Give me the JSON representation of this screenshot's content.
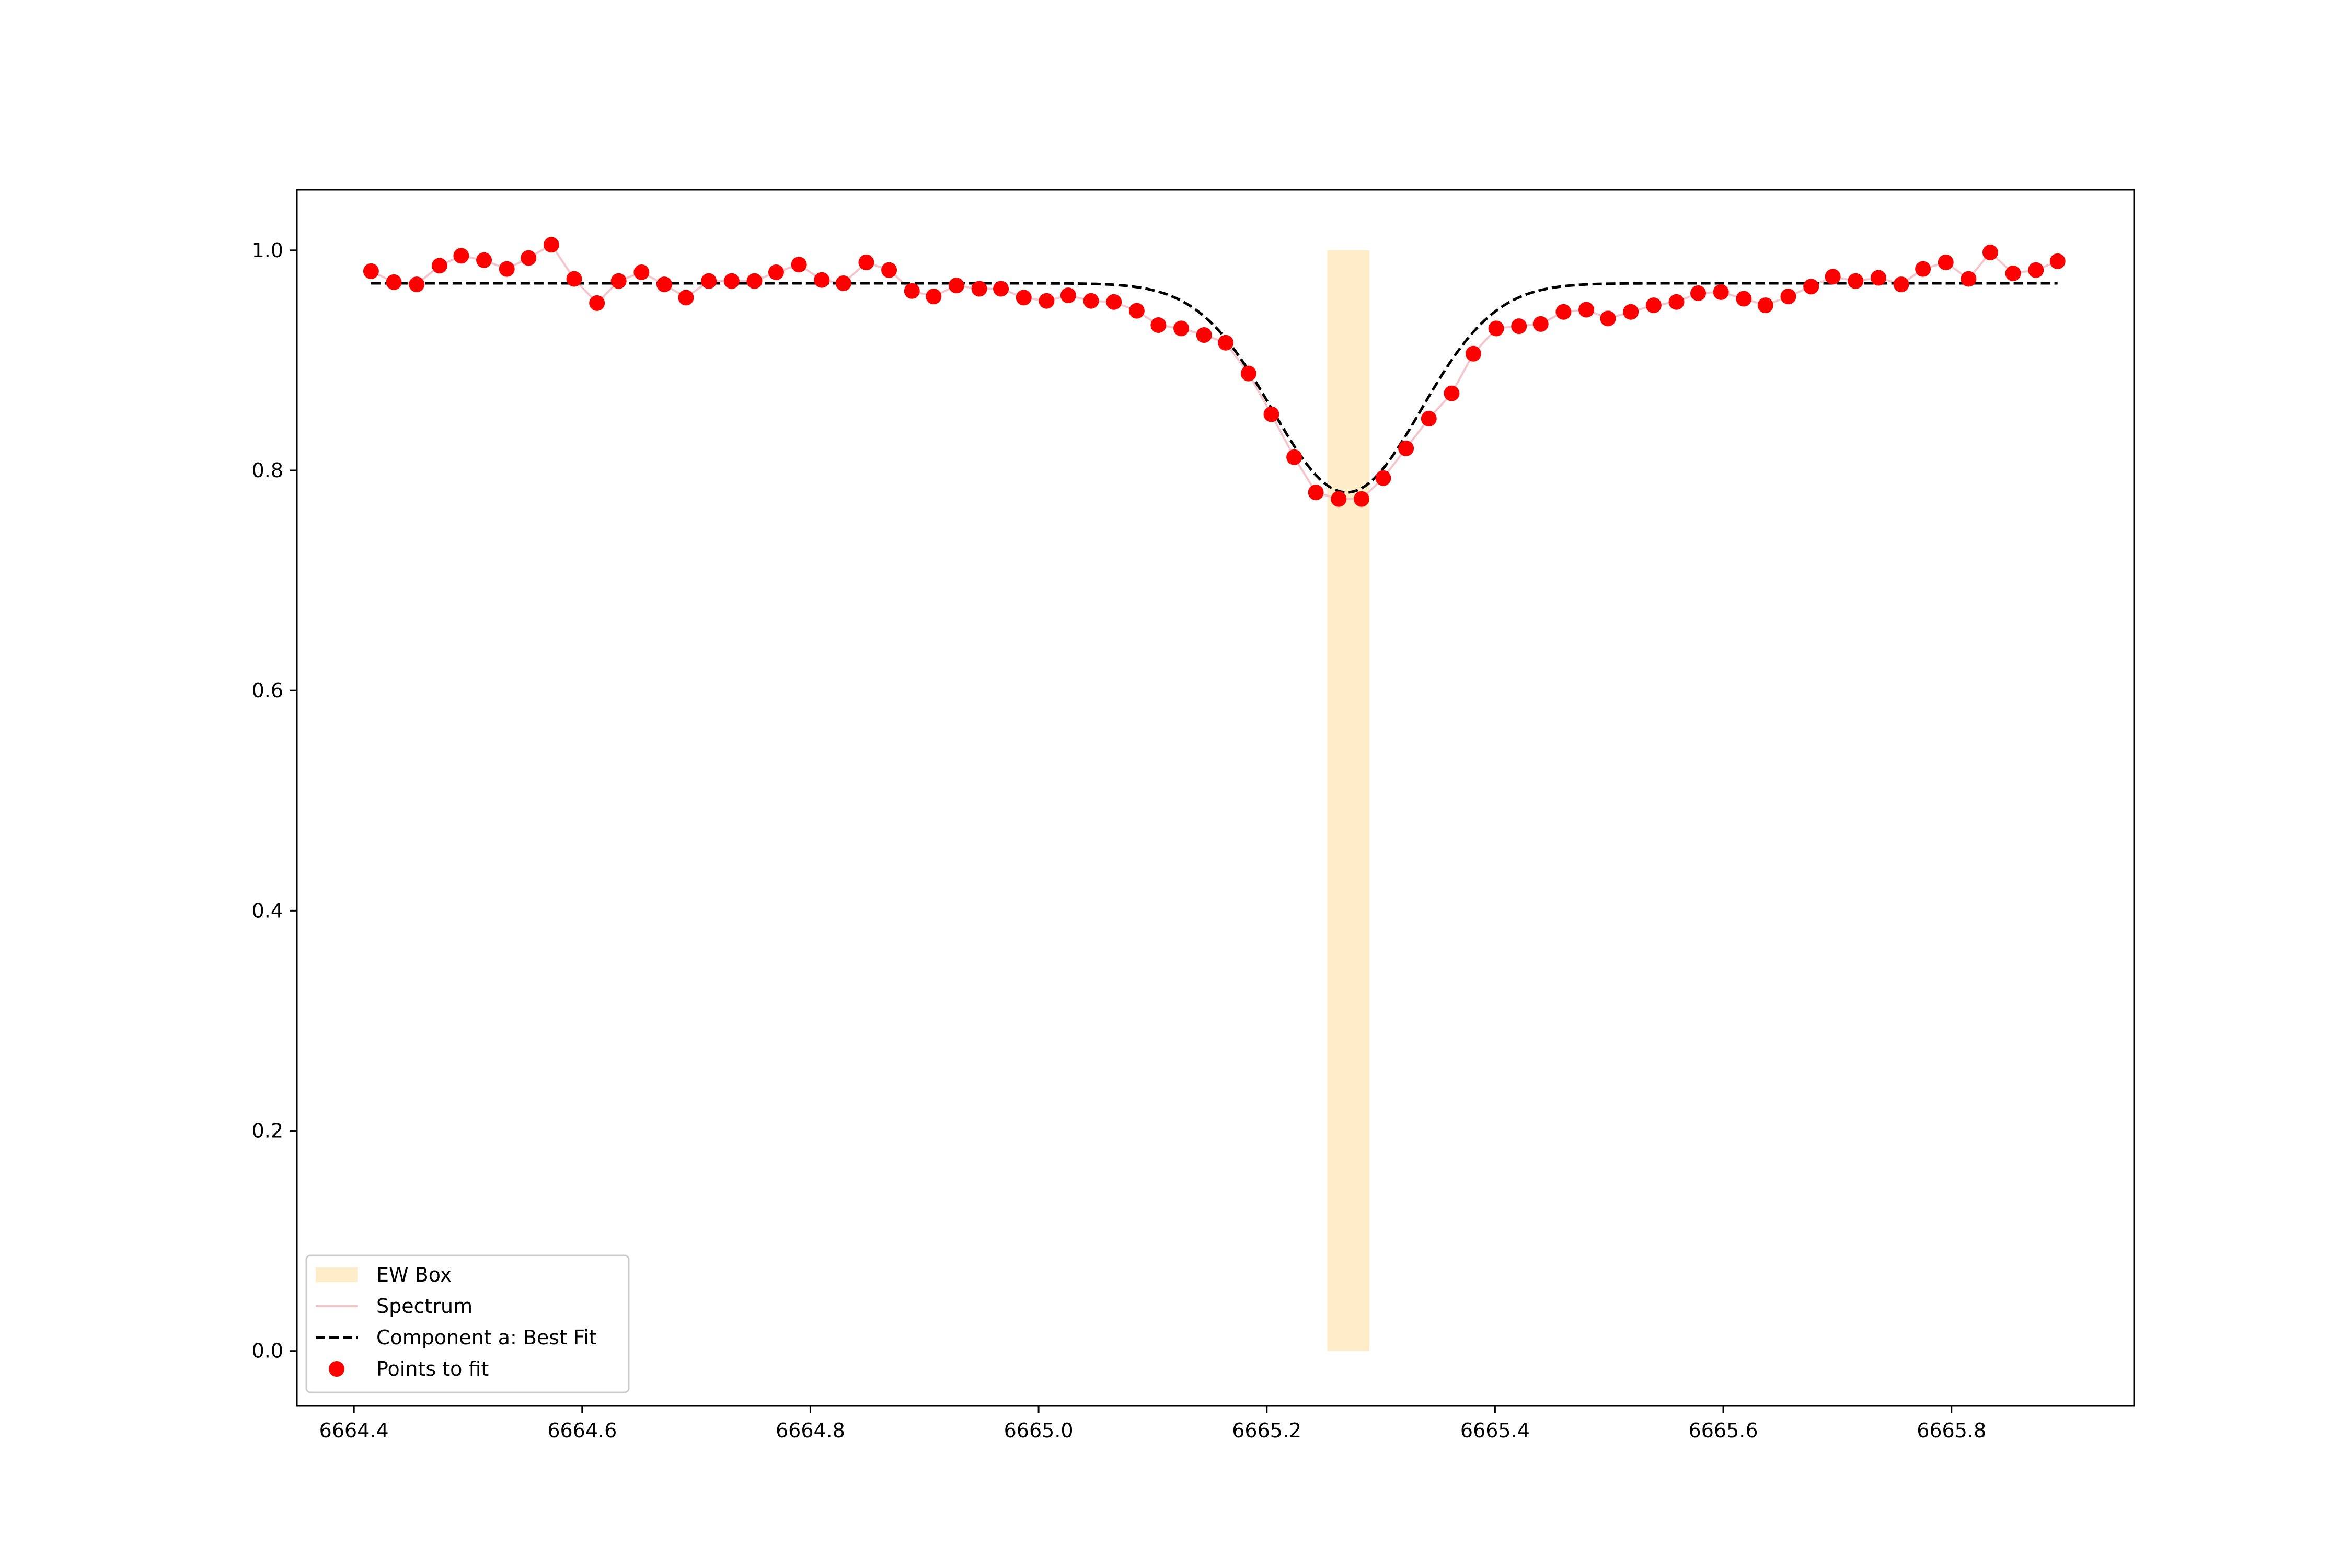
{
  "chart_data": {
    "type": "scatter",
    "title": "",
    "xlabel": "",
    "ylabel": "",
    "xlim": [
      6664.35,
      6665.96
    ],
    "ylim": [
      -0.05,
      1.055
    ],
    "x_ticks": [
      6664.4,
      6664.6,
      6664.8,
      6665.0,
      6665.2,
      6665.4,
      6665.6,
      6665.8
    ],
    "x_tick_labels": [
      "6664.4",
      "6664.6",
      "6664.8",
      "6665.0",
      "6665.2",
      "6665.4",
      "6665.6",
      "6665.8"
    ],
    "y_ticks": [
      0.0,
      0.2,
      0.4,
      0.6,
      0.8,
      1.0
    ],
    "y_tick_labels": [
      "0.0",
      "0.2",
      "0.4",
      "0.6",
      "0.8",
      "1.0"
    ],
    "grid": false,
    "legend_position": "lower-left",
    "legend": [
      {
        "label": "EW Box",
        "kind": "patch",
        "color": "#ffecc8"
      },
      {
        "label": "Spectrum",
        "kind": "line",
        "color": "#f4c6cc"
      },
      {
        "label": "Component a: Best Fit",
        "kind": "dashed-line",
        "color": "#000000"
      },
      {
        "label": "Points to fit",
        "kind": "marker",
        "color": "#ff0000"
      }
    ],
    "ew_box": {
      "label": "EW Box",
      "x_range": [
        6665.253,
        6665.29
      ],
      "y_range": [
        0.0,
        1.0
      ],
      "color": "#ffecc8"
    },
    "spectrum": {
      "label": "Points to fit",
      "line_label": "Spectrum",
      "marker_color": "#ff0000",
      "line_color": "#f4c6cc",
      "x": [
        6664.415,
        6664.435,
        6664.455,
        6664.475,
        6664.494,
        6664.514,
        6664.534,
        6664.553,
        6664.573,
        6664.593,
        6664.613,
        6664.632,
        6664.652,
        6664.672,
        6664.691,
        6664.711,
        6664.731,
        6664.751,
        6664.77,
        6664.79,
        6664.81,
        6664.829,
        6664.849,
        6664.869,
        6664.889,
        6664.908,
        6664.928,
        6664.948,
        6664.967,
        6664.987,
        6665.007,
        6665.026,
        6665.046,
        6665.066,
        6665.086,
        6665.105,
        6665.125,
        6665.145,
        6665.164,
        6665.184,
        6665.204,
        6665.224,
        6665.243,
        6665.263,
        6665.283,
        6665.302,
        6665.322,
        6665.342,
        6665.362,
        6665.381,
        6665.401,
        6665.421,
        6665.44,
        6665.46,
        6665.48,
        6665.499,
        6665.519,
        6665.539,
        6665.559,
        6665.578,
        6665.598,
        6665.618,
        6665.637,
        6665.657,
        6665.677,
        6665.696,
        6665.716,
        6665.736,
        6665.756,
        6665.775,
        6665.795,
        6665.815,
        6665.834,
        6665.854,
        6665.874,
        6665.893
      ],
      "y": [
        0.981,
        0.971,
        0.969,
        0.986,
        0.995,
        0.991,
        0.983,
        0.993,
        1.005,
        0.974,
        0.952,
        0.972,
        0.98,
        0.969,
        0.957,
        0.972,
        0.972,
        0.972,
        0.98,
        0.987,
        0.973,
        0.97,
        0.989,
        0.982,
        0.963,
        0.958,
        0.968,
        0.965,
        0.965,
        0.957,
        0.954,
        0.959,
        0.954,
        0.953,
        0.945,
        0.932,
        0.929,
        0.923,
        0.916,
        0.888,
        0.851,
        0.812,
        0.78,
        0.774,
        0.774,
        0.793,
        0.82,
        0.847,
        0.87,
        0.906,
        0.929,
        0.931,
        0.933,
        0.944,
        0.946,
        0.938,
        0.944,
        0.95,
        0.953,
        0.961,
        0.962,
        0.956,
        0.95,
        0.958,
        0.967,
        0.976,
        0.972,
        0.975,
        0.969,
        0.983,
        0.989,
        0.974,
        0.998,
        0.979,
        0.982,
        0.99
      ]
    },
    "best_fit": {
      "label": "Component a: Best Fit",
      "color": "#000000",
      "dash": "dashed",
      "model": "gaussian",
      "continuum": 0.97,
      "depth": 0.19,
      "center": 6665.27,
      "sigma": 0.065,
      "x_range": [
        6664.415,
        6665.893
      ]
    }
  }
}
